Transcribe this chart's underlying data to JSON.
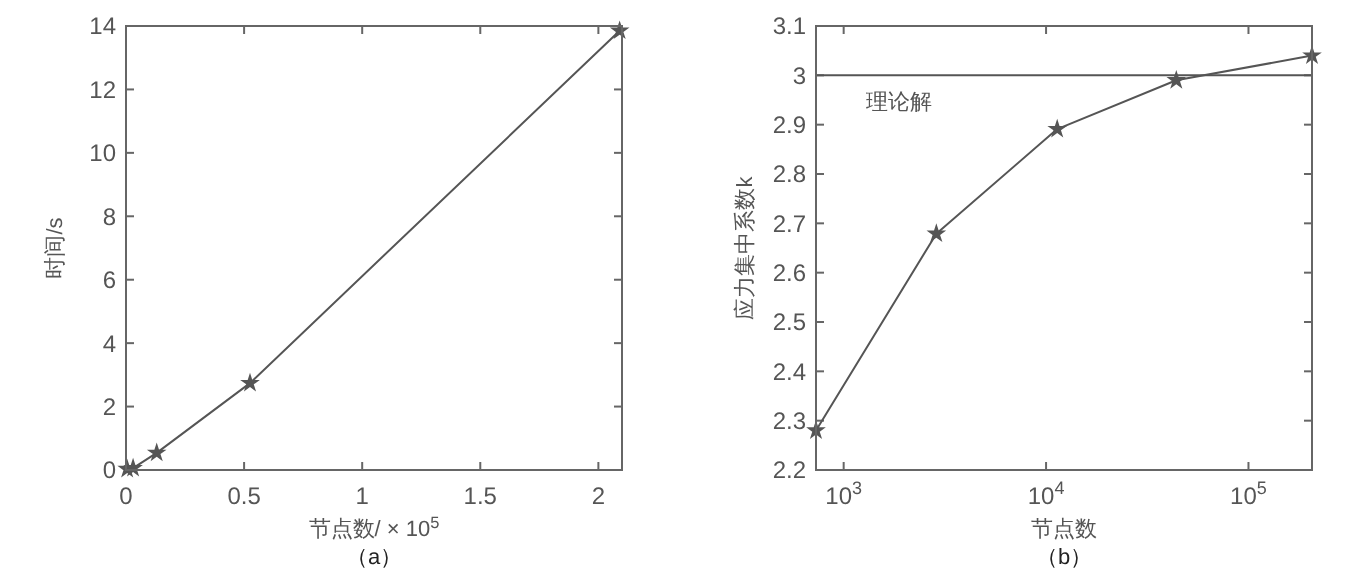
{
  "chart_data": [
    {
      "type": "line",
      "title": "（a）",
      "xlabel": "节点数/ × 10$^{5}$",
      "ylabel": "时间/s",
      "x": [
        0.005,
        0.03,
        0.13,
        0.525,
        2.09
      ],
      "values": [
        0.03,
        0.06,
        0.54,
        2.74,
        13.85
      ],
      "color": "#555555",
      "marker": "star",
      "xlim": [
        0,
        2.1
      ],
      "xticks": [
        0,
        0.5,
        1,
        1.5,
        2
      ],
      "ylim": [
        0,
        14
      ],
      "yticks": [
        0,
        2,
        4,
        6,
        8,
        10,
        12,
        14
      ],
      "grid": false
    },
    {
      "type": "line",
      "title": "（b）",
      "xlabel": "节点数",
      "ylabel": "应力集中系数k",
      "log": "x",
      "x": [
        730,
        2870,
        11350,
        44000,
        206000
      ],
      "values": [
        2.28,
        2.679,
        2.891,
        2.99,
        3.04
      ],
      "color": "#555555",
      "marker": "star",
      "xlim": [
        730,
        206000
      ],
      "xticks": [
        {
          "value": 1000,
          "label": "10$^{3}$"
        },
        {
          "value": 10000,
          "label": "10$^{4}$"
        },
        {
          "value": 100000,
          "label": "10$^{5}$"
        }
      ],
      "ylim": [
        2.2,
        3.1
      ],
      "yticks": [
        2.2,
        2.3,
        2.4,
        2.5,
        2.6,
        2.7,
        2.8,
        2.9,
        3,
        3.1
      ],
      "grid": false,
      "ref_lines": [
        {
          "axis": "y",
          "value": 3,
          "label": "理论解",
          "color": "#555555"
        }
      ]
    }
  ]
}
